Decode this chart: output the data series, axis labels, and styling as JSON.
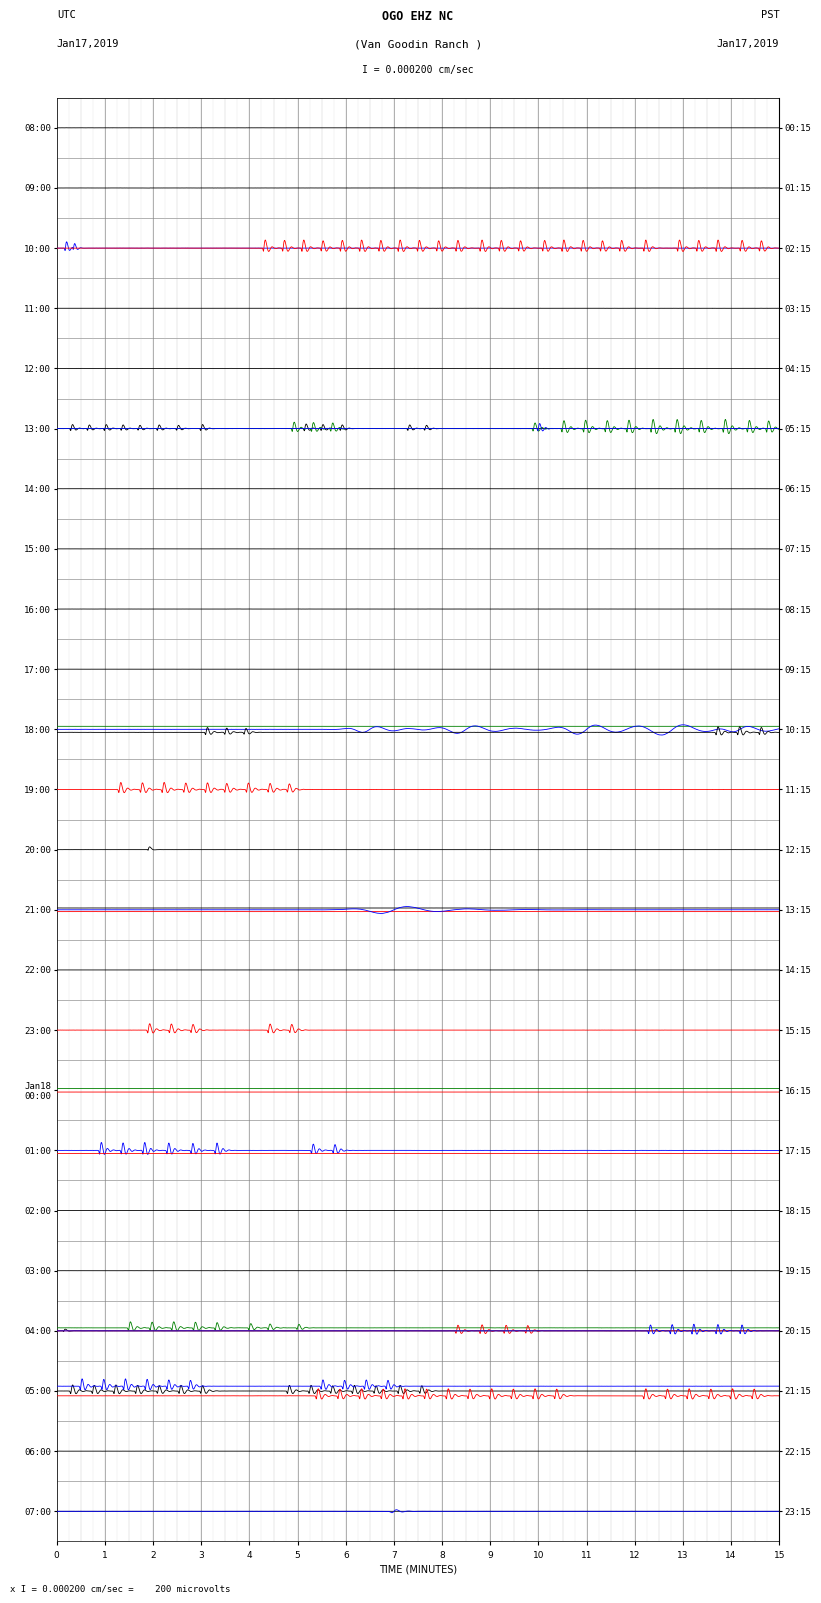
{
  "title_line1": "OGO EHZ NC",
  "title_line2": "(Van Goodin Ranch )",
  "title_scale": "I = 0.000200 cm/sec",
  "left_header_line1": "UTC",
  "left_header_line2": "Jan17,2019",
  "right_header_line1": "PST",
  "right_header_line2": "Jan17,2019",
  "xlabel": "TIME (MINUTES)",
  "footer": "x I = 0.000200 cm/sec =    200 microvolts",
  "xlim": [
    0,
    15
  ],
  "background_color": "#ffffff",
  "font_size": 7,
  "tick_label_size": 6.5
}
